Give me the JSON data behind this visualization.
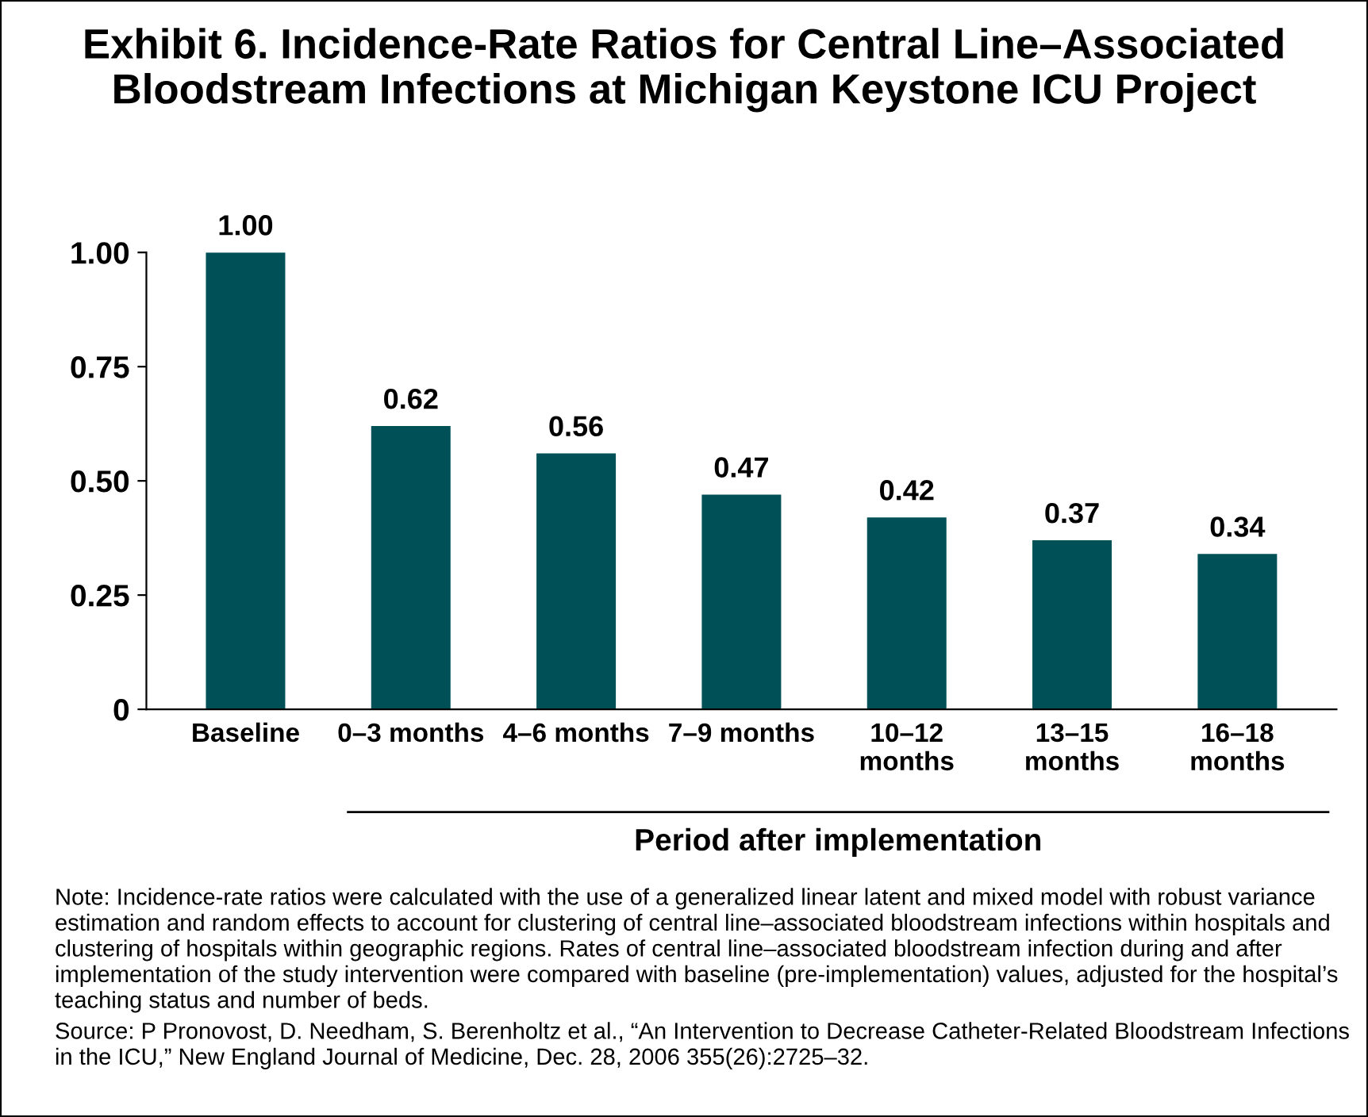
{
  "chart_data": {
    "type": "bar",
    "title": "Exhibit 6. Incidence-Rate Ratios for Central Line–Associated Bloodstream Infections at Michigan Keystone ICU Project",
    "categories": [
      "Baseline",
      "0–3 months",
      "4–6 months",
      "7–9 months",
      "10–12\nmonths",
      "13–15\nmonths",
      "16–18\nmonths"
    ],
    "values": [
      1.0,
      0.62,
      0.56,
      0.47,
      0.42,
      0.37,
      0.34
    ],
    "color": "#005058",
    "value_labels": [
      "1.00",
      "0.62",
      "0.56",
      "0.47",
      "0.42",
      "0.37",
      "0.34"
    ],
    "xlabel": "Period after implementation",
    "ylim": [
      0,
      1.0
    ],
    "yticks": [
      0,
      {
        "value": 0.25,
        "label": "0.25"
      },
      {
        "value": 0.5,
        "label": "0.50"
      },
      {
        "value": 0.75,
        "label": "0.75"
      },
      {
        "value": 1.0,
        "label": "1.00"
      }
    ],
    "grid": false,
    "annotations": [
      "Note: Incidence-rate ratios were calculated with the use of a generalized linear latent and mixed model with robust variance estimation and random effects to account for clustering of central line–associated bloodstream infections within hospitals and clustering of hospitals within geographic regions. Rates of central line–associated bloodstream infection during and after implementation of the study intervention were compared with baseline (pre-implementation) values, adjusted for the hospital’s teaching status and number of beds.",
      "Source: P Pronovost, D. Needham, S. Berenholtz et al., “An Intervention to Decrease Catheter-Related Bloodstream Infections in the ICU,” New England Journal of Medicine, Dec. 28, 2006 355(26):2725–32."
    ]
  }
}
